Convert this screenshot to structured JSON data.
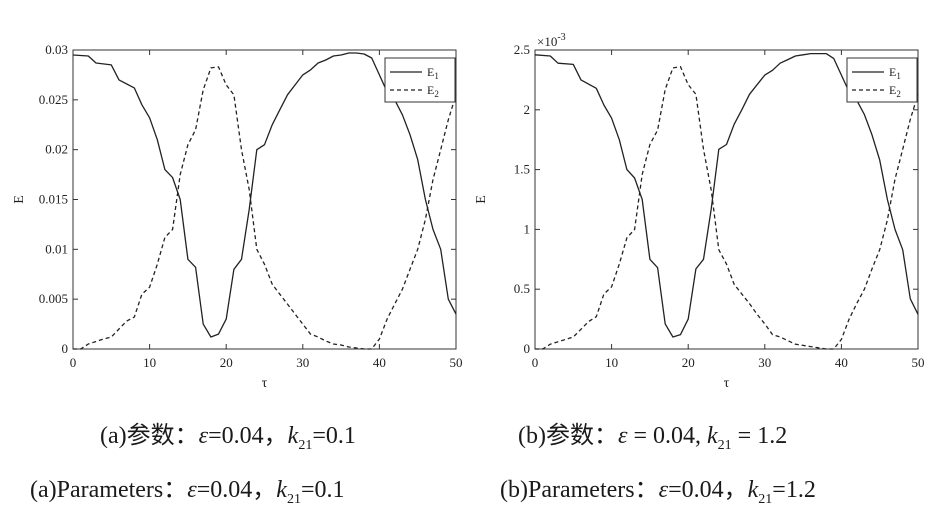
{
  "chart_data": [
    {
      "id": "a",
      "type": "line",
      "xlabel": "τ",
      "ylabel": "E",
      "xlim": [
        0,
        50
      ],
      "ylim": [
        0,
        0.03
      ],
      "xticks": [
        "0",
        "10",
        "20",
        "30",
        "40",
        "50"
      ],
      "yticks": [
        "0",
        "0.005",
        "0.01",
        "0.015",
        "0.02",
        "0.025",
        "0.03"
      ],
      "exponent_label": "",
      "legend_position": "top-right",
      "series": [
        {
          "name": "E",
          "subscript": "1",
          "style": "solid",
          "color": "#222222",
          "x": [
            0,
            2,
            3,
            5,
            6,
            8,
            9,
            10,
            11,
            12,
            13,
            14,
            15,
            16,
            17,
            18,
            19,
            20,
            21,
            22,
            23,
            24,
            25,
            26,
            27,
            28,
            29,
            30,
            31,
            32,
            33,
            34,
            35,
            36,
            37,
            38,
            39,
            40,
            41,
            42,
            43,
            44,
            45,
            46,
            47,
            48,
            49,
            50
          ],
          "y": [
            0.0295,
            0.0294,
            0.0287,
            0.0285,
            0.027,
            0.0262,
            0.0245,
            0.0232,
            0.021,
            0.018,
            0.0172,
            0.015,
            0.009,
            0.0082,
            0.0025,
            0.0012,
            0.0015,
            0.003,
            0.008,
            0.009,
            0.014,
            0.02,
            0.0205,
            0.0225,
            0.024,
            0.0255,
            0.0265,
            0.0275,
            0.028,
            0.0287,
            0.029,
            0.0294,
            0.0295,
            0.0297,
            0.0297,
            0.0296,
            0.0292,
            0.0275,
            0.0258,
            0.025,
            0.0235,
            0.0215,
            0.019,
            0.015,
            0.012,
            0.01,
            0.005,
            0.0035
          ]
        },
        {
          "name": "E",
          "subscript": "2",
          "style": "dashed",
          "color": "#222222",
          "x": [
            0,
            1,
            2,
            4,
            5,
            7,
            8,
            9,
            10,
            11,
            12,
            13,
            14,
            15,
            16,
            17,
            18,
            19,
            20,
            21,
            22,
            23,
            24,
            25,
            26,
            27,
            28,
            29,
            30,
            31,
            32,
            33,
            34,
            35,
            36,
            37,
            38,
            39,
            40,
            41,
            42,
            43,
            44,
            45,
            46,
            47,
            48,
            49,
            50
          ],
          "y": [
            0.0,
            0.0,
            0.0005,
            0.001,
            0.0012,
            0.0028,
            0.0032,
            0.0055,
            0.0062,
            0.0085,
            0.0112,
            0.012,
            0.0175,
            0.0205,
            0.022,
            0.026,
            0.0282,
            0.0283,
            0.0265,
            0.0255,
            0.02,
            0.016,
            0.01,
            0.0085,
            0.0065,
            0.0055,
            0.0045,
            0.0035,
            0.0025,
            0.0015,
            0.0012,
            0.0008,
            0.0005,
            0.0004,
            0.0002,
            0.0001,
            0.0,
            0.0,
            0.001,
            0.003,
            0.0045,
            0.006,
            0.008,
            0.01,
            0.013,
            0.017,
            0.02,
            0.023,
            0.0255
          ]
        }
      ]
    },
    {
      "id": "b",
      "type": "line",
      "xlabel": "τ",
      "ylabel": "E",
      "xlim": [
        0,
        50
      ],
      "ylim": [
        0,
        2.5
      ],
      "xticks": [
        "0",
        "10",
        "20",
        "30",
        "40",
        "50"
      ],
      "yticks": [
        "0",
        "0.5",
        "1",
        "1.5",
        "2",
        "2.5"
      ],
      "exponent_label": "×10",
      "exponent_power": "-3",
      "legend_position": "top-right",
      "series": [
        {
          "name": "E",
          "subscript": "1",
          "style": "solid",
          "color": "#222222",
          "x": [
            0,
            2,
            3,
            5,
            6,
            8,
            9,
            10,
            11,
            12,
            13,
            14,
            15,
            16,
            17,
            18,
            19,
            20,
            21,
            22,
            23,
            24,
            25,
            26,
            27,
            28,
            29,
            30,
            31,
            32,
            33,
            34,
            35,
            36,
            37,
            38,
            39,
            40,
            41,
            42,
            43,
            44,
            45,
            46,
            47,
            48,
            49,
            50
          ],
          "y": [
            2.46,
            2.45,
            2.39,
            2.38,
            2.25,
            2.18,
            2.04,
            1.93,
            1.75,
            1.5,
            1.43,
            1.25,
            0.75,
            0.68,
            0.21,
            0.1,
            0.12,
            0.25,
            0.67,
            0.75,
            1.17,
            1.67,
            1.71,
            1.88,
            2.0,
            2.13,
            2.21,
            2.29,
            2.33,
            2.39,
            2.42,
            2.45,
            2.46,
            2.47,
            2.47,
            2.47,
            2.43,
            2.29,
            2.15,
            2.08,
            1.96,
            1.79,
            1.58,
            1.25,
            1.0,
            0.83,
            0.42,
            0.29
          ]
        },
        {
          "name": "E",
          "subscript": "2",
          "style": "dashed",
          "color": "#222222",
          "x": [
            0,
            1,
            2,
            4,
            5,
            7,
            8,
            9,
            10,
            11,
            12,
            13,
            14,
            15,
            16,
            17,
            18,
            19,
            20,
            21,
            22,
            23,
            24,
            25,
            26,
            27,
            28,
            29,
            30,
            31,
            32,
            33,
            34,
            35,
            36,
            37,
            38,
            39,
            40,
            41,
            42,
            43,
            44,
            45,
            46,
            47,
            48,
            49,
            50
          ],
          "y": [
            0.0,
            0.0,
            0.04,
            0.08,
            0.1,
            0.23,
            0.27,
            0.46,
            0.52,
            0.71,
            0.93,
            1.0,
            1.46,
            1.71,
            1.83,
            2.17,
            2.35,
            2.36,
            2.21,
            2.13,
            1.67,
            1.33,
            0.83,
            0.71,
            0.54,
            0.46,
            0.38,
            0.29,
            0.21,
            0.12,
            0.1,
            0.07,
            0.04,
            0.03,
            0.02,
            0.01,
            0.0,
            0.0,
            0.08,
            0.25,
            0.38,
            0.5,
            0.67,
            0.83,
            1.08,
            1.42,
            1.67,
            1.92,
            2.13
          ]
        }
      ]
    }
  ],
  "captions": {
    "a_cn": {
      "prefix": "(a)参数：",
      "eps": "ε",
      "eq1": "=0.04，",
      "k": "k",
      "sub": "21",
      "eq2": "=0.1"
    },
    "b_cn": {
      "prefix": "(b)参数：",
      "eps": "ε",
      "eq1": " = 0.04, ",
      "k": "k",
      "sub": "21",
      "eq2": " = 1.2"
    },
    "a_en": {
      "prefix": "(a)Parameters：",
      "eps": "ε",
      "eq1": "=0.04，",
      "k": "k",
      "sub": "21",
      "eq2": "=0.1"
    },
    "b_en": {
      "prefix": "(b)Parameters：",
      "eps": "ε",
      "eq1": "=0.04，",
      "k": "k",
      "sub": "21",
      "eq2": "=1.2"
    }
  }
}
